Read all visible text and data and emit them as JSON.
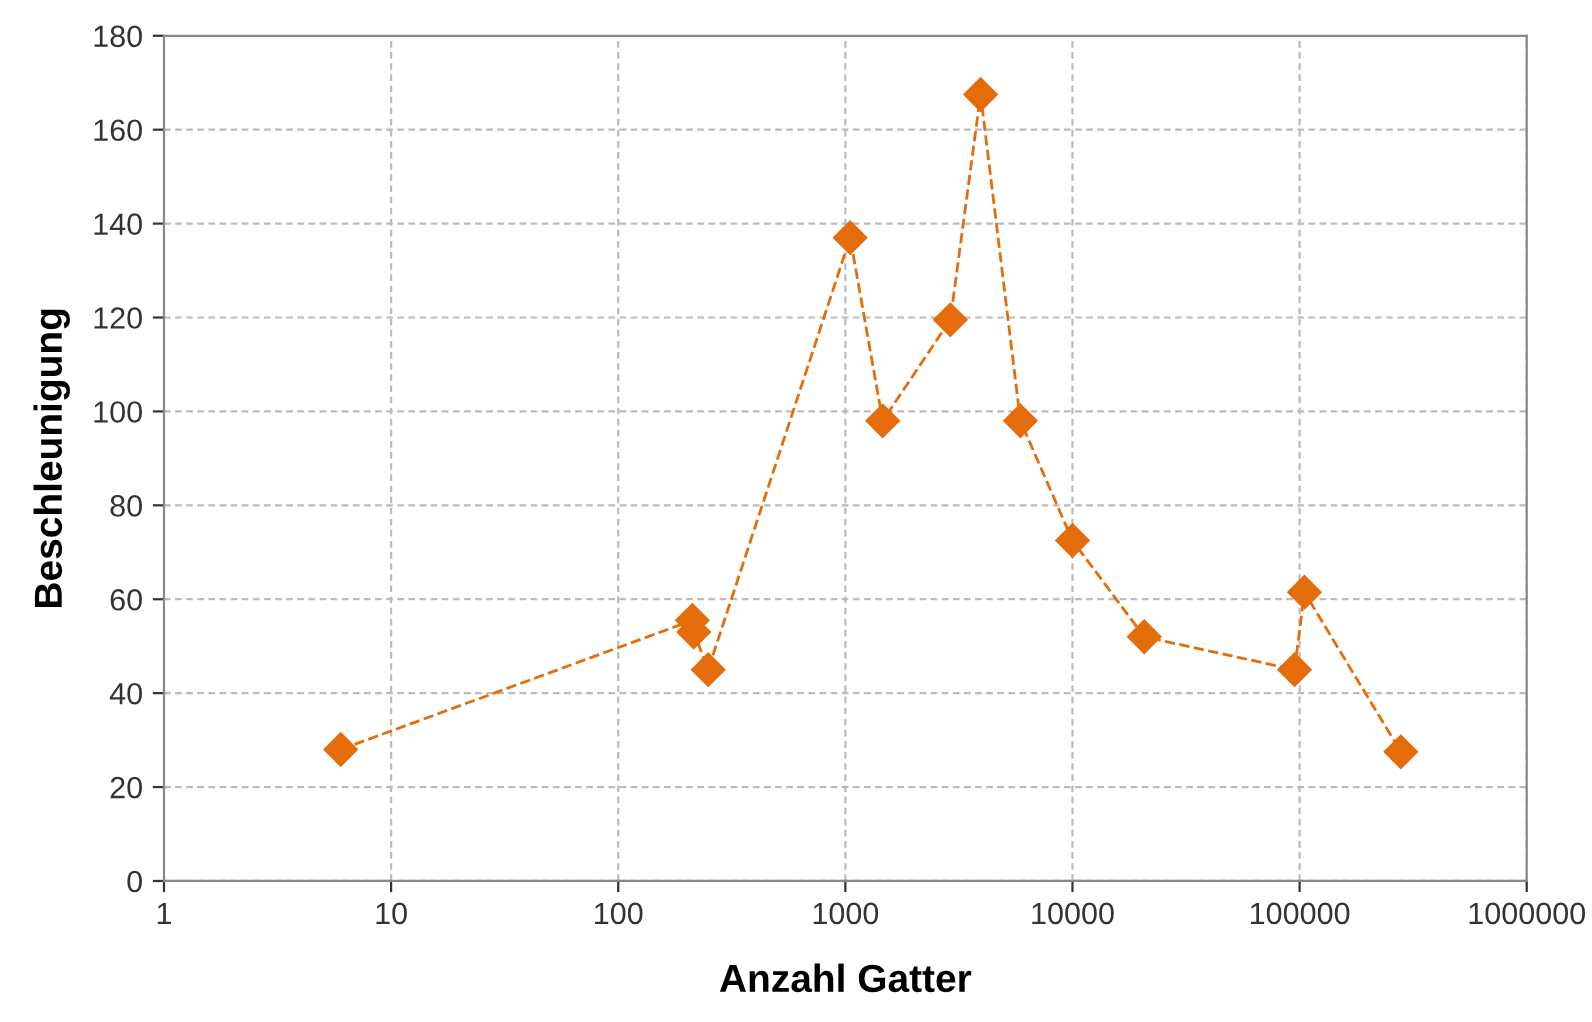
{
  "chart_data": {
    "type": "line",
    "xlabel": "Anzahl Gatter",
    "ylabel": "Beschleunigung",
    "log": "x",
    "grid": true,
    "marker": "diamond",
    "line_style": "dashed",
    "xlim": [
      1,
      1000000
    ],
    "xticks": [
      1,
      10,
      100,
      1000,
      10000,
      100000,
      1000000
    ],
    "ylim": [
      0,
      180
    ],
    "yticks": [
      0,
      20,
      40,
      60,
      80,
      100,
      120,
      140,
      160,
      180
    ],
    "series": [
      {
        "color": "#e46c0a",
        "x": [
          6,
          212,
          215,
          249,
          1050,
          1460,
          2900,
          3940,
          5900,
          10000,
          20700,
          95000,
          105000,
          279000
        ],
        "values": [
          28,
          55.5,
          53,
          45,
          137,
          98,
          119.5,
          167.5,
          98,
          72.5,
          52,
          45,
          61.5,
          27.5
        ]
      }
    ]
  }
}
